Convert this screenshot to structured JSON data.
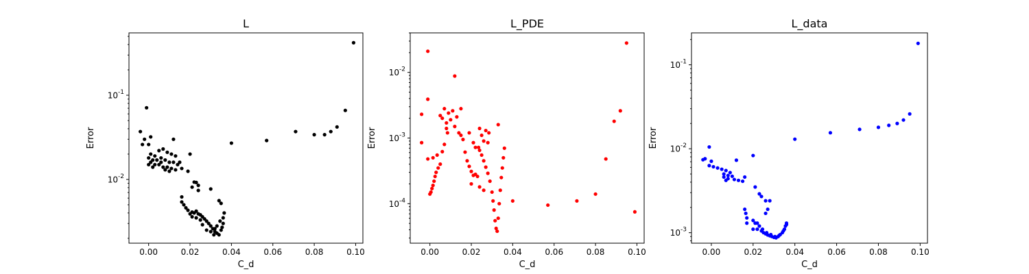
{
  "chart_data": [
    {
      "type": "scatter",
      "title": "L",
      "xlabel": "C_d",
      "ylabel": "Error",
      "xscale": "linear",
      "yscale": "log",
      "xlim": [
        -0.0095,
        0.1035
      ],
      "ylim": [
        0.00175,
        0.55
      ],
      "xticks": [
        0.0,
        0.02,
        0.04,
        0.06,
        0.08,
        0.1
      ],
      "xtick_labels": [
        "0.00",
        "0.02",
        "0.04",
        "0.06",
        "0.08",
        "0.10"
      ],
      "yticks": [
        0.01,
        0.1
      ],
      "ytick_labels": [
        "10^-2",
        "10^-1"
      ],
      "grid": false,
      "color": "#000000",
      "points": [
        {
          "x": 0.099,
          "y": 0.42
        },
        {
          "x": -0.001,
          "y": 0.071
        },
        {
          "x": 0.095,
          "y": 0.066
        },
        {
          "x": -0.004,
          "y": 0.037
        },
        {
          "x": 0.091,
          "y": 0.042
        },
        {
          "x": 0.071,
          "y": 0.037
        },
        {
          "x": 0.088,
          "y": 0.037
        },
        {
          "x": 0.08,
          "y": 0.034
        },
        {
          "x": 0.085,
          "y": 0.034
        },
        {
          "x": 0.001,
          "y": 0.032
        },
        {
          "x": -0.002,
          "y": 0.03
        },
        {
          "x": 0.057,
          "y": 0.029
        },
        {
          "x": 0.04,
          "y": 0.027
        },
        {
          "x": 0.012,
          "y": 0.03
        },
        {
          "x": -0.003,
          "y": 0.026
        },
        {
          "x": 0.0,
          "y": 0.026
        },
        {
          "x": 0.005,
          "y": 0.022
        },
        {
          "x": 0.007,
          "y": 0.023
        },
        {
          "x": 0.009,
          "y": 0.021
        },
        {
          "x": 0.011,
          "y": 0.02
        },
        {
          "x": 0.013,
          "y": 0.019
        },
        {
          "x": 0.02,
          "y": 0.02
        },
        {
          "x": 0.001,
          "y": 0.02
        },
        {
          "x": 0.003,
          "y": 0.019
        },
        {
          "x": 0.0,
          "y": 0.018
        },
        {
          "x": 0.002,
          "y": 0.017
        },
        {
          "x": 0.004,
          "y": 0.017
        },
        {
          "x": 0.006,
          "y": 0.018
        },
        {
          "x": 0.008,
          "y": 0.017
        },
        {
          "x": 0.01,
          "y": 0.016
        },
        {
          "x": 0.012,
          "y": 0.016
        },
        {
          "x": 0.014,
          "y": 0.015
        },
        {
          "x": 0.015,
          "y": 0.016
        },
        {
          "x": 0.001,
          "y": 0.016
        },
        {
          "x": 0.003,
          "y": 0.015
        },
        {
          "x": 0.005,
          "y": 0.015
        },
        {
          "x": 0.007,
          "y": 0.014
        },
        {
          "x": 0.009,
          "y": 0.014
        },
        {
          "x": 0.011,
          "y": 0.0135
        },
        {
          "x": 0.013,
          "y": 0.013
        },
        {
          "x": 0.0,
          "y": 0.015
        },
        {
          "x": 0.002,
          "y": 0.014
        },
        {
          "x": 0.006,
          "y": 0.016
        },
        {
          "x": 0.008,
          "y": 0.013
        },
        {
          "x": 0.01,
          "y": 0.0125
        },
        {
          "x": 0.016,
          "y": 0.0135
        },
        {
          "x": 0.019,
          "y": 0.0125
        },
        {
          "x": 0.022,
          "y": 0.0093
        },
        {
          "x": 0.023,
          "y": 0.0092
        },
        {
          "x": 0.024,
          "y": 0.0085
        },
        {
          "x": 0.021,
          "y": 0.0081
        },
        {
          "x": 0.024,
          "y": 0.0074
        },
        {
          "x": 0.03,
          "y": 0.0077
        },
        {
          "x": 0.016,
          "y": 0.0062
        },
        {
          "x": 0.016,
          "y": 0.0054
        },
        {
          "x": 0.017,
          "y": 0.005
        },
        {
          "x": 0.034,
          "y": 0.0056
        },
        {
          "x": 0.035,
          "y": 0.0052
        },
        {
          "x": 0.018,
          "y": 0.0046
        },
        {
          "x": 0.019,
          "y": 0.0043
        },
        {
          "x": 0.021,
          "y": 0.0041
        },
        {
          "x": 0.022,
          "y": 0.004
        },
        {
          "x": 0.023,
          "y": 0.0042
        },
        {
          "x": 0.024,
          "y": 0.0039
        },
        {
          "x": 0.025,
          "y": 0.0038
        },
        {
          "x": 0.026,
          "y": 0.0036
        },
        {
          "x": 0.027,
          "y": 0.0034
        },
        {
          "x": 0.028,
          "y": 0.0032
        },
        {
          "x": 0.029,
          "y": 0.003
        },
        {
          "x": 0.03,
          "y": 0.0028
        },
        {
          "x": 0.031,
          "y": 0.0026
        },
        {
          "x": 0.032,
          "y": 0.0024
        },
        {
          "x": 0.033,
          "y": 0.0023
        },
        {
          "x": 0.034,
          "y": 0.0022
        },
        {
          "x": 0.035,
          "y": 0.0025
        },
        {
          "x": 0.036,
          "y": 0.003
        },
        {
          "x": 0.036,
          "y": 0.0035
        },
        {
          "x": 0.0365,
          "y": 0.004
        },
        {
          "x": 0.0355,
          "y": 0.0027
        },
        {
          "x": 0.0345,
          "y": 0.0032
        },
        {
          "x": 0.033,
          "y": 0.0028
        },
        {
          "x": 0.032,
          "y": 0.0026
        },
        {
          "x": 0.025,
          "y": 0.0033
        },
        {
          "x": 0.023,
          "y": 0.0035
        },
        {
          "x": 0.021,
          "y": 0.0036
        },
        {
          "x": 0.02,
          "y": 0.0039
        },
        {
          "x": 0.028,
          "y": 0.0025
        },
        {
          "x": 0.03,
          "y": 0.0024
        },
        {
          "x": 0.0315,
          "y": 0.0022
        },
        {
          "x": 0.026,
          "y": 0.0029
        }
      ]
    },
    {
      "type": "scatter",
      "title": "L_PDE",
      "xlabel": "C_d",
      "ylabel": "Error",
      "xscale": "linear",
      "yscale": "log",
      "xlim": [
        -0.0095,
        0.1035
      ],
      "ylim": [
        2.5e-05,
        0.04
      ],
      "xticks": [
        0.0,
        0.02,
        0.04,
        0.06,
        0.08,
        0.1
      ],
      "xtick_labels": [
        "0.00",
        "0.02",
        "0.04",
        "0.06",
        "0.08",
        "0.10"
      ],
      "yticks": [
        0.0001,
        0.001,
        0.01
      ],
      "ytick_labels": [
        "10^-4",
        "10^-3",
        "10^-2"
      ],
      "grid": false,
      "color": "#ff0000",
      "points": [
        {
          "x": 0.095,
          "y": 0.028
        },
        {
          "x": -0.001,
          "y": 0.021
        },
        {
          "x": 0.012,
          "y": 0.0088
        },
        {
          "x": -0.001,
          "y": 0.0039
        },
        {
          "x": 0.092,
          "y": 0.0026
        },
        {
          "x": 0.005,
          "y": 0.0022
        },
        {
          "x": 0.007,
          "y": 0.0028
        },
        {
          "x": 0.009,
          "y": 0.0024
        },
        {
          "x": 0.011,
          "y": 0.0026
        },
        {
          "x": 0.013,
          "y": 0.0021
        },
        {
          "x": 0.015,
          "y": 0.0028
        },
        {
          "x": 0.089,
          "y": 0.0018
        },
        {
          "x": -0.004,
          "y": 0.0023
        },
        {
          "x": 0.006,
          "y": 0.002
        },
        {
          "x": 0.008,
          "y": 0.0017
        },
        {
          "x": 0.008,
          "y": 0.0014
        },
        {
          "x": 0.0085,
          "y": 0.0012
        },
        {
          "x": 0.01,
          "y": 0.0019
        },
        {
          "x": 0.012,
          "y": 0.0015
        },
        {
          "x": 0.014,
          "y": 0.0012
        },
        {
          "x": 0.015,
          "y": 0.0011
        },
        {
          "x": 0.016,
          "y": 0.00095
        },
        {
          "x": 0.019,
          "y": 0.0012
        },
        {
          "x": 0.021,
          "y": 0.00085
        },
        {
          "x": 0.022,
          "y": 0.00072
        },
        {
          "x": 0.024,
          "y": 0.0014
        },
        {
          "x": 0.025,
          "y": 0.0011
        },
        {
          "x": 0.026,
          "y": 0.0009
        },
        {
          "x": 0.027,
          "y": 0.0013
        },
        {
          "x": 0.028,
          "y": 0.00085
        },
        {
          "x": 0.0285,
          "y": 0.0012
        },
        {
          "x": 0.033,
          "y": 0.0016
        },
        {
          "x": -0.004,
          "y": 0.00085
        },
        {
          "x": 0.0015,
          "y": 0.0005
        },
        {
          "x": 0.0035,
          "y": 0.00055
        },
        {
          "x": 0.007,
          "y": 0.0008
        },
        {
          "x": -0.001,
          "y": 0.00048
        },
        {
          "x": 0.006,
          "y": 0.00062
        },
        {
          "x": 0.005,
          "y": 0.0004
        },
        {
          "x": 0.004,
          "y": 0.00035
        },
        {
          "x": 0.003,
          "y": 0.0003
        },
        {
          "x": 0.0025,
          "y": 0.00026
        },
        {
          "x": 0.002,
          "y": 0.00022
        },
        {
          "x": 0.0015,
          "y": 0.00019
        },
        {
          "x": 0.001,
          "y": 0.00017
        },
        {
          "x": 0.0005,
          "y": 0.00015
        },
        {
          "x": 0.0,
          "y": 0.00014
        },
        {
          "x": 0.017,
          "y": 0.00061
        },
        {
          "x": 0.018,
          "y": 0.00045
        },
        {
          "x": 0.019,
          "y": 0.00037
        },
        {
          "x": 0.02,
          "y": 0.00031
        },
        {
          "x": 0.021,
          "y": 0.00027
        },
        {
          "x": 0.022,
          "y": 0.00028
        },
        {
          "x": 0.023,
          "y": 0.00026
        },
        {
          "x": 0.0235,
          "y": 0.00072
        },
        {
          "x": 0.024,
          "y": 0.00065
        },
        {
          "x": 0.025,
          "y": 0.00055
        },
        {
          "x": 0.026,
          "y": 0.00045
        },
        {
          "x": 0.027,
          "y": 0.00036
        },
        {
          "x": 0.028,
          "y": 0.00029
        },
        {
          "x": 0.029,
          "y": 0.00022
        },
        {
          "x": 0.03,
          "y": 0.00015
        },
        {
          "x": 0.0305,
          "y": 0.00011
        },
        {
          "x": 0.031,
          "y": 8e-05
        },
        {
          "x": 0.0315,
          "y": 5.5e-05
        },
        {
          "x": 0.032,
          "y": 4.2e-05
        },
        {
          "x": 0.0325,
          "y": 3.8e-05
        },
        {
          "x": 0.033,
          "y": 6e-05
        },
        {
          "x": 0.0335,
          "y": 0.0001
        },
        {
          "x": 0.034,
          "y": 0.00016
        },
        {
          "x": 0.0345,
          "y": 0.00025
        },
        {
          "x": 0.035,
          "y": 0.00035
        },
        {
          "x": 0.0355,
          "y": 0.0005
        },
        {
          "x": 0.036,
          "y": 0.0007
        },
        {
          "x": 0.024,
          "y": 0.00018
        },
        {
          "x": 0.026,
          "y": 0.00016
        },
        {
          "x": 0.02,
          "y": 0.0002
        },
        {
          "x": 0.04,
          "y": 0.00011
        },
        {
          "x": 0.057,
          "y": 9.5e-05
        },
        {
          "x": 0.071,
          "y": 0.00011
        },
        {
          "x": 0.08,
          "y": 0.00014
        },
        {
          "x": 0.085,
          "y": 0.00048
        },
        {
          "x": 0.099,
          "y": 7.5e-05
        }
      ]
    },
    {
      "type": "scatter",
      "title": "L_data",
      "xlabel": "C_d",
      "ylabel": "Error",
      "xscale": "linear",
      "yscale": "log",
      "xlim": [
        -0.0095,
        0.1035
      ],
      "ylim": [
        0.00075,
        0.24
      ],
      "xticks": [
        0.0,
        0.02,
        0.04,
        0.06,
        0.08,
        0.1
      ],
      "xtick_labels": [
        "0.00",
        "0.02",
        "0.04",
        "0.06",
        "0.08",
        "0.10"
      ],
      "yticks": [
        0.001,
        0.01,
        0.1
      ],
      "ytick_labels": [
        "10^-3",
        "10^-2",
        "10^-1"
      ],
      "grid": false,
      "color": "#0000ff",
      "points": [
        {
          "x": 0.099,
          "y": 0.18
        },
        {
          "x": 0.095,
          "y": 0.026
        },
        {
          "x": 0.092,
          "y": 0.022
        },
        {
          "x": 0.089,
          "y": 0.02
        },
        {
          "x": 0.085,
          "y": 0.019
        },
        {
          "x": 0.08,
          "y": 0.018
        },
        {
          "x": 0.071,
          "y": 0.017
        },
        {
          "x": 0.057,
          "y": 0.0155
        },
        {
          "x": 0.04,
          "y": 0.013
        },
        {
          "x": -0.001,
          "y": 0.0105
        },
        {
          "x": 0.02,
          "y": 0.0083
        },
        {
          "x": -0.003,
          "y": 0.0076
        },
        {
          "x": -0.004,
          "y": 0.0074
        },
        {
          "x": 0.012,
          "y": 0.0073
        },
        {
          "x": 0.0,
          "y": 0.0071
        },
        {
          "x": -0.001,
          "y": 0.0063
        },
        {
          "x": 0.001,
          "y": 0.0061
        },
        {
          "x": 0.003,
          "y": 0.0059
        },
        {
          "x": 0.005,
          "y": 0.0057
        },
        {
          "x": 0.007,
          "y": 0.0055
        },
        {
          "x": 0.009,
          "y": 0.0052
        },
        {
          "x": 0.006,
          "y": 0.005
        },
        {
          "x": 0.008,
          "y": 0.0048
        },
        {
          "x": 0.01,
          "y": 0.0047
        },
        {
          "x": 0.006,
          "y": 0.0046
        },
        {
          "x": 0.008,
          "y": 0.0044
        },
        {
          "x": 0.011,
          "y": 0.0043
        },
        {
          "x": 0.013,
          "y": 0.0042
        },
        {
          "x": 0.015,
          "y": 0.0041
        },
        {
          "x": 0.016,
          "y": 0.0046
        },
        {
          "x": 0.007,
          "y": 0.0042
        },
        {
          "x": 0.021,
          "y": 0.0035
        },
        {
          "x": 0.023,
          "y": 0.0029
        },
        {
          "x": 0.024,
          "y": 0.0027
        },
        {
          "x": 0.028,
          "y": 0.0024
        },
        {
          "x": 0.026,
          "y": 0.0024
        },
        {
          "x": 0.016,
          "y": 0.0019
        },
        {
          "x": 0.0165,
          "y": 0.0017
        },
        {
          "x": 0.017,
          "y": 0.0015
        },
        {
          "x": 0.017,
          "y": 0.0013
        },
        {
          "x": 0.027,
          "y": 0.0019
        },
        {
          "x": 0.026,
          "y": 0.0017
        },
        {
          "x": 0.02,
          "y": 0.0014
        },
        {
          "x": 0.021,
          "y": 0.0013
        },
        {
          "x": 0.022,
          "y": 0.0013
        },
        {
          "x": 0.023,
          "y": 0.0012
        },
        {
          "x": 0.02,
          "y": 0.0011
        },
        {
          "x": 0.022,
          "y": 0.0011
        },
        {
          "x": 0.024,
          "y": 0.00105
        },
        {
          "x": 0.025,
          "y": 0.001
        },
        {
          "x": 0.026,
          "y": 0.00097
        },
        {
          "x": 0.027,
          "y": 0.00094
        },
        {
          "x": 0.028,
          "y": 0.00092
        },
        {
          "x": 0.029,
          "y": 0.0009
        },
        {
          "x": 0.03,
          "y": 0.00088
        },
        {
          "x": 0.031,
          "y": 0.00087
        },
        {
          "x": 0.032,
          "y": 0.0009
        },
        {
          "x": 0.033,
          "y": 0.00095
        },
        {
          "x": 0.034,
          "y": 0.001
        },
        {
          "x": 0.035,
          "y": 0.0011
        },
        {
          "x": 0.0355,
          "y": 0.0012
        },
        {
          "x": 0.036,
          "y": 0.0013
        },
        {
          "x": 0.036,
          "y": 0.00125
        },
        {
          "x": 0.0345,
          "y": 0.00105
        },
        {
          "x": 0.0325,
          "y": 0.00093
        },
        {
          "x": 0.0305,
          "y": 0.0009
        },
        {
          "x": 0.0285,
          "y": 0.00095
        },
        {
          "x": 0.0265,
          "y": 0.001
        },
        {
          "x": 0.0245,
          "y": 0.0011
        }
      ]
    }
  ]
}
